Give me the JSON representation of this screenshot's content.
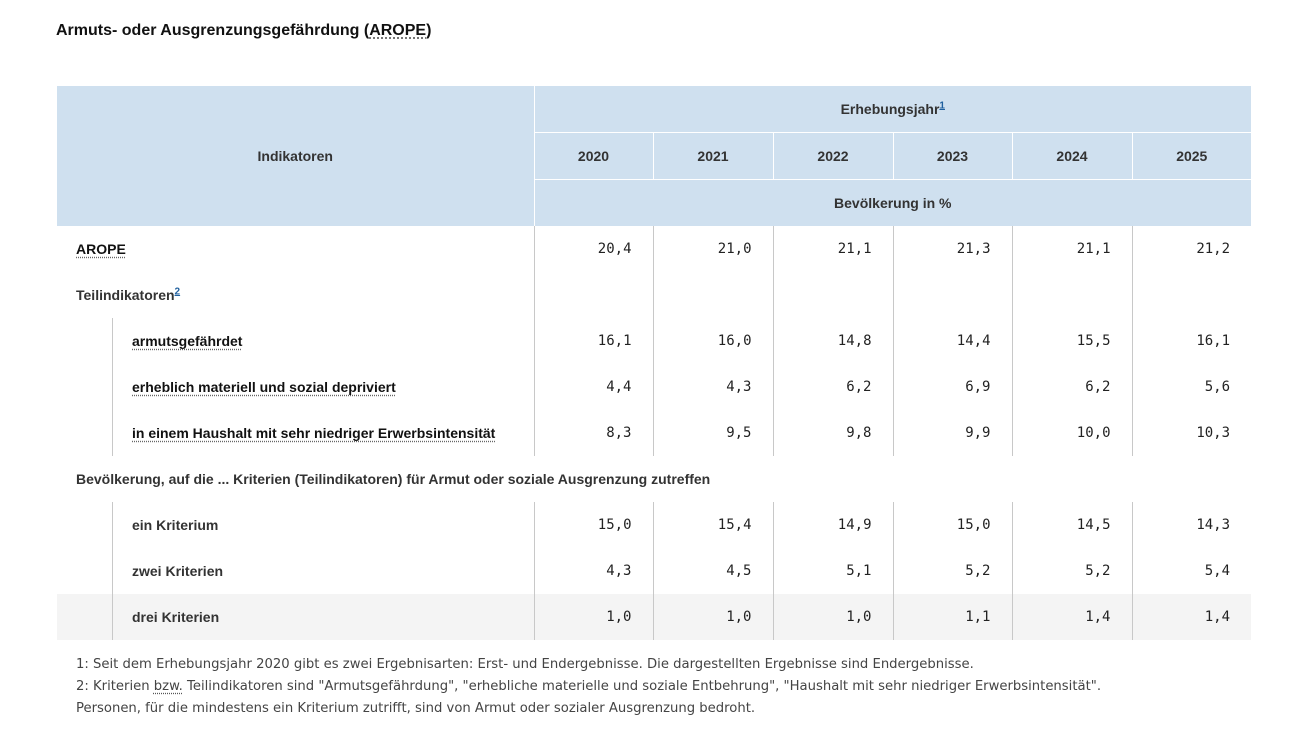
{
  "title": {
    "prefix": "Armuts- oder Ausgrenzungsgefährdung (",
    "abbr": "AROPE",
    "suffix": ")"
  },
  "header": {
    "indicators": "Indikatoren",
    "survey_year": "Erhebungsjahr",
    "survey_year_note": "1",
    "years": [
      "2020",
      "2021",
      "2022",
      "2023",
      "2024",
      "2025"
    ],
    "unit": "Bevölkerung in %"
  },
  "rows": [
    {
      "label": "AROPE",
      "values": [
        "20,4",
        "21,0",
        "21,1",
        "21,3",
        "21,1",
        "21,2"
      ]
    },
    {
      "label": "Teilindikatoren",
      "note": "2"
    },
    {
      "label": "armutsgefährdet",
      "values": [
        "16,1",
        "16,0",
        "14,8",
        "14,4",
        "15,5",
        "16,1"
      ]
    },
    {
      "label": "erheblich materiell und sozial depriviert",
      "values": [
        "4,4",
        "4,3",
        "6,2",
        "6,9",
        "6,2",
        "5,6"
      ]
    },
    {
      "label": "in einem Haushalt mit sehr niedriger Erwerbsintensität",
      "values": [
        "8,3",
        "9,5",
        "9,8",
        "9,9",
        "10,0",
        "10,3"
      ]
    },
    {
      "label": "Bevölkerung, auf die ... Kriterien (Teilindikatoren) für Armut oder soziale Ausgrenzung zutreffen"
    },
    {
      "label": "ein Kriterium",
      "values": [
        "15,0",
        "15,4",
        "14,9",
        "15,0",
        "14,5",
        "14,3"
      ]
    },
    {
      "label": "zwei Kriterien",
      "values": [
        "4,3",
        "4,5",
        "5,1",
        "5,2",
        "5,2",
        "5,4"
      ]
    },
    {
      "label": "drei Kriterien",
      "values": [
        "1,0",
        "1,0",
        "1,0",
        "1,1",
        "1,4",
        "1,4"
      ]
    }
  ],
  "footnotes": {
    "note1": "1: Seit dem Erhebungsjahr 2020 gibt es zwei Ergebnisarten: Erst- und Endergebnisse. Die dargestellten Ergebnisse sind Endergebnisse.",
    "note2_a": "2: Kriterien ",
    "note2_abbr": "bzw.",
    "note2_b": " Teilindikatoren sind \"Armutsgefährdung\", \"erhebliche materielle und soziale Entbehrung\", \"Haushalt mit sehr niedriger Erwerbsintensität\".",
    "note3": "Personen, für die mindestens ein Kriterium zutrifft, sind von Armut oder sozialer Ausgrenzung bedroht."
  }
}
